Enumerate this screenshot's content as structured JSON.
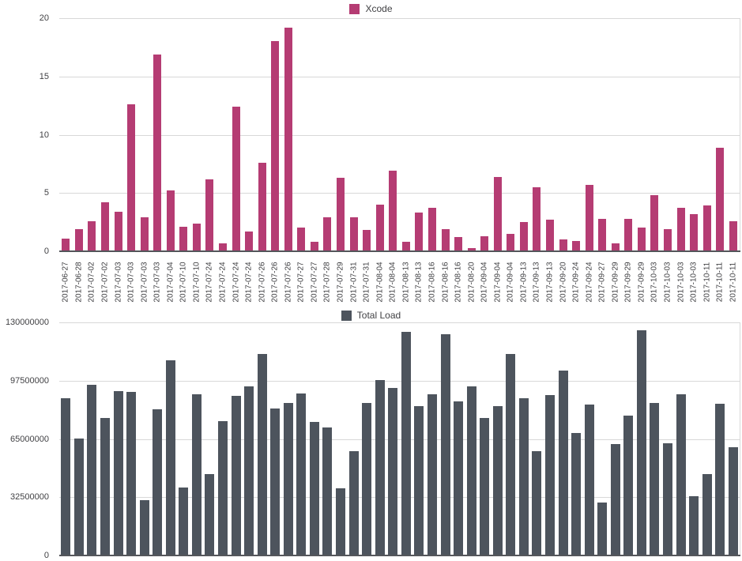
{
  "colors": {
    "background": "#ffffff",
    "grid": "#d8d8d8",
    "axis": "#54565b",
    "text": "#414144",
    "xcode_pink": "#b53c73",
    "total_load_gray": "#4d545d"
  },
  "chart_data": [
    {
      "type": "bar",
      "name": "xcode",
      "legend": "Xcode",
      "bar_color": "#b53c73",
      "title": "",
      "xlabel": "",
      "ylabel": "",
      "ylim": [
        0,
        20
      ],
      "yticks": [
        0,
        5,
        10,
        15,
        20
      ],
      "ytick_labels": [
        "0",
        "5",
        "10",
        "15",
        "20"
      ],
      "grid": true,
      "legend_position": "top-center",
      "show_x_labels": true,
      "categories": [
        "2017-06-27",
        "2017-06-28",
        "2017-07-02",
        "2017-07-02",
        "2017-07-03",
        "2017-07-03",
        "2017-07-03",
        "2017-07-03",
        "2017-07-04",
        "2017-07-10",
        "2017-07-10",
        "2017-07-24",
        "2017-07-24",
        "2017-07-24",
        "2017-07-24",
        "2017-07-26",
        "2017-07-26",
        "2017-07-26",
        "2017-07-27",
        "2017-07-27",
        "2017-07-28",
        "2017-07-29",
        "2017-07-31",
        "2017-07-31",
        "2017-08-04",
        "2017-08-04",
        "2017-08-13",
        "2017-08-13",
        "2017-08-16",
        "2017-08-16",
        "2017-08-16",
        "2017-08-20",
        "2017-09-04",
        "2017-09-04",
        "2017-09-04",
        "2017-09-13",
        "2017-09-13",
        "2017-09-13",
        "2017-09-20",
        "2017-09-24",
        "2017-09-24",
        "2017-09-27",
        "2017-09-29",
        "2017-09-29",
        "2017-09-29",
        "2017-10-03",
        "2017-10-03",
        "2017-10-03",
        "2017-10-03",
        "2017-10-11",
        "2017-10-11",
        "2017-10-11"
      ],
      "values": [
        1.1,
        1.9,
        2.6,
        4.2,
        3.4,
        12.6,
        2.9,
        16.9,
        5.2,
        2.1,
        2.4,
        6.2,
        0.7,
        12.4,
        1.7,
        7.6,
        18,
        19.2,
        2,
        0.8,
        2.9,
        6.3,
        2.9,
        1.8,
        4,
        6.9,
        0.8,
        3.3,
        3.7,
        1.9,
        1.2,
        0.3,
        1.3,
        6.4,
        1.5,
        2.5,
        5.5,
        2.7,
        1,
        0.9,
        5.7,
        2.8,
        0.7,
        2.8,
        2,
        4.8,
        1.9,
        3.7,
        3.2,
        3.9,
        8.9,
        2.6
      ]
    },
    {
      "type": "bar",
      "name": "total-load",
      "legend": "Total Load",
      "bar_color": "#4d545d",
      "title": "",
      "xlabel": "",
      "ylabel": "",
      "ylim": [
        0,
        130000000
      ],
      "yticks": [
        0,
        32500000,
        65000000,
        97500000,
        130000000
      ],
      "ytick_labels": [
        "0",
        "32500000",
        "65000000",
        "97500000",
        "130000000"
      ],
      "grid": true,
      "legend_position": "top-center",
      "show_x_labels": false,
      "categories": [
        "2017-06-27",
        "2017-06-28",
        "2017-07-02",
        "2017-07-02",
        "2017-07-03",
        "2017-07-03",
        "2017-07-03",
        "2017-07-03",
        "2017-07-04",
        "2017-07-10",
        "2017-07-10",
        "2017-07-24",
        "2017-07-24",
        "2017-07-24",
        "2017-07-24",
        "2017-07-26",
        "2017-07-26",
        "2017-07-26",
        "2017-07-27",
        "2017-07-27",
        "2017-07-28",
        "2017-07-29",
        "2017-07-31",
        "2017-07-31",
        "2017-08-04",
        "2017-08-04",
        "2017-08-13",
        "2017-08-13",
        "2017-08-16",
        "2017-08-16",
        "2017-08-16",
        "2017-08-20",
        "2017-09-04",
        "2017-09-04",
        "2017-09-04",
        "2017-09-13",
        "2017-09-13",
        "2017-09-13",
        "2017-09-20",
        "2017-09-24",
        "2017-09-24",
        "2017-09-27",
        "2017-09-29",
        "2017-09-29",
        "2017-09-29",
        "2017-10-03",
        "2017-10-03",
        "2017-10-03",
        "2017-10-03",
        "2017-10-11",
        "2017-10-11",
        "2017-10-11"
      ],
      "values": [
        87500000,
        65000000,
        95000000,
        76500000,
        91500000,
        91000000,
        31000000,
        81500000,
        109000000,
        38000000,
        90000000,
        45500000,
        75000000,
        89000000,
        94500000,
        112500000,
        82000000,
        85000000,
        90500000,
        74500000,
        71500000,
        37500000,
        58000000,
        85000000,
        98000000,
        93500000,
        124500000,
        83500000,
        90000000,
        123500000,
        86000000,
        94500000,
        76500000,
        83500000,
        112500000,
        87500000,
        58000000,
        89500000,
        103000000,
        68500000,
        84000000,
        29500000,
        62000000,
        78000000,
        125500000,
        85000000,
        62500000,
        90000000,
        33000000,
        45500000,
        84500000,
        60500000
      ]
    }
  ]
}
